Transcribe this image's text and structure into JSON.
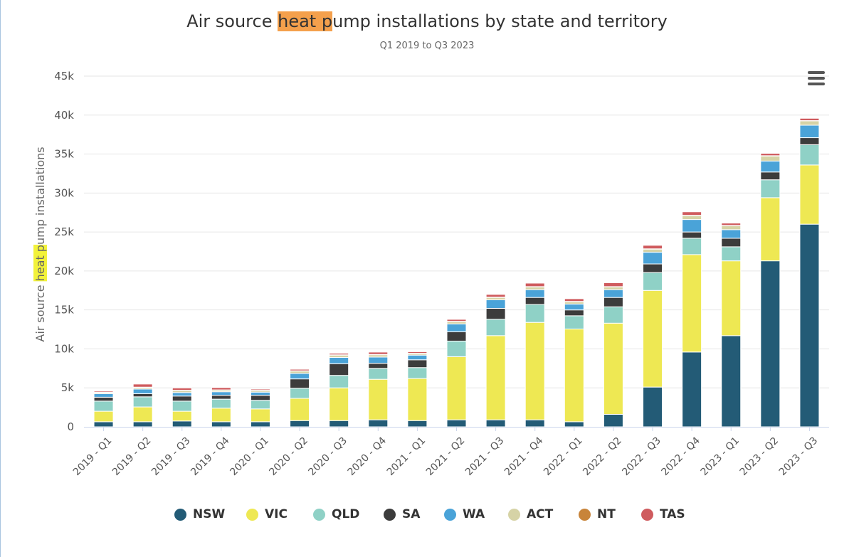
{
  "chart_data": {
    "type": "bar",
    "stacked": true,
    "title_parts": {
      "before": "Air source ",
      "highlight": "heat p",
      "after": "ump installations by state and territory"
    },
    "subtitle": "Q1 2019 to Q3 2023",
    "ylabel_parts": {
      "before": "Air source ",
      "highlight": "heat p",
      "after": "ump installations"
    },
    "xlabel": "",
    "ylim": [
      0,
      45000
    ],
    "ytick_labels": [
      "0",
      "5k",
      "10k",
      "15k",
      "20k",
      "25k",
      "30k",
      "35k",
      "40k",
      "45k"
    ],
    "grid": true,
    "legend_position": "bottom",
    "categories": [
      "2019 - Q1",
      "2019 - Q2",
      "2019 - Q3",
      "2019 - Q4",
      "2020 - Q1",
      "2020 - Q2",
      "2020 - Q3",
      "2020 - Q4",
      "2021 - Q1",
      "2021 - Q2",
      "2021 - Q3",
      "2021 - Q4",
      "2022 - Q1",
      "2022 - Q2",
      "2022 - Q3",
      "2022 - Q4",
      "2023 - Q1",
      "2023 - Q2",
      "2023 - Q3"
    ],
    "series": [
      {
        "name": "NSW",
        "color": "#235b76",
        "values": [
          650,
          650,
          750,
          650,
          650,
          800,
          800,
          900,
          800,
          900,
          900,
          900,
          650,
          1600,
          5100,
          9600,
          11700,
          21300,
          26000
        ]
      },
      {
        "name": "VIC",
        "color": "#eee853",
        "values": [
          1350,
          1900,
          1250,
          1750,
          1650,
          2850,
          4200,
          5200,
          5400,
          8100,
          10800,
          12500,
          11900,
          11700,
          12400,
          12500,
          9600,
          8100,
          7600
        ]
      },
      {
        "name": "QLD",
        "color": "#8fd1c6",
        "values": [
          1300,
          1300,
          1300,
          1150,
          1100,
          1300,
          1600,
          1400,
          1400,
          2000,
          2100,
          2300,
          1700,
          2100,
          2300,
          2100,
          1800,
          2300,
          2600
        ]
      },
      {
        "name": "SA",
        "color": "#3c3c3c",
        "values": [
          500,
          400,
          650,
          500,
          650,
          1200,
          1500,
          650,
          1000,
          1200,
          1400,
          900,
          750,
          1200,
          1100,
          800,
          1100,
          1000,
          900
        ]
      },
      {
        "name": "WA",
        "color": "#4aa3d8",
        "values": [
          450,
          600,
          450,
          450,
          400,
          700,
          800,
          800,
          600,
          1000,
          1100,
          1000,
          750,
          1000,
          1500,
          1600,
          1100,
          1400,
          1600
        ]
      },
      {
        "name": "ACT",
        "color": "#d6d3a6",
        "values": [
          150,
          200,
          250,
          200,
          200,
          300,
          300,
          300,
          200,
          300,
          300,
          350,
          300,
          350,
          400,
          500,
          500,
          650,
          550
        ]
      },
      {
        "name": "NT",
        "color": "#c8843a",
        "values": [
          40,
          40,
          40,
          40,
          40,
          40,
          40,
          40,
          40,
          40,
          40,
          40,
          40,
          40,
          40,
          40,
          40,
          40,
          40
        ]
      },
      {
        "name": "TAS",
        "color": "#cf5b5e",
        "values": [
          150,
          400,
          300,
          300,
          150,
          200,
          200,
          300,
          200,
          250,
          350,
          450,
          350,
          500,
          450,
          450,
          300,
          300,
          300
        ]
      }
    ]
  }
}
